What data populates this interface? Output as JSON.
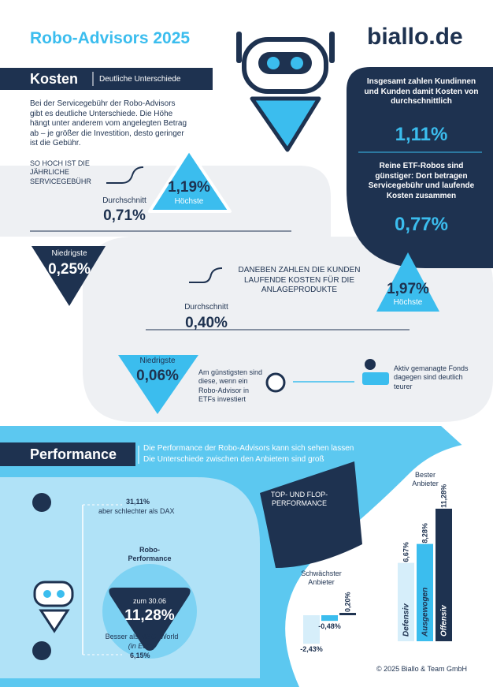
{
  "header": {
    "title": "Robo-Advisors 2025",
    "brand": "biallo.de"
  },
  "kosten": {
    "heading": "Kosten",
    "subheading": "Deutliche Unterschiede",
    "intro": "Bei der Servicegebühr der Robo-Advisors gibt es deutliche Unterschiede. Die Höhe hängt unter anderem vom angelegten Betrag ab – je größer die Investition, desto geringer ist die Gebühr.",
    "fee_label": "SO HOCH IST DIE JÄHRLICHE SERVICEGEBÜHR",
    "fee_avg_label": "Durchschnitt",
    "fee_avg": "0,71%",
    "fee_max": "1,19%",
    "fee_max_label": "Höchste",
    "fee_min_label": "Niedrigste",
    "fee_min": "0,25%",
    "total_text": "Insgesamt zahlen Kundinnen und Kunden damit Kosten von durchschnittlich",
    "total_value": "1,11%",
    "etf_text": "Reine ETF-Robos sind günstiger: Dort betragen Servicegebühr und laufende Kosten zusammen",
    "etf_value": "0,77%",
    "product_label": "DANEBEN ZAHLEN DIE KUNDEN LAUFENDE KOSTEN FÜR DIE ANLAGEPRODUKTE",
    "product_avg_label": "Durchschnitt",
    "product_avg": "0,40%",
    "product_max": "1,97%",
    "product_max_label": "Höchste",
    "product_min_label": "Niedrigste",
    "product_min": "0,06%",
    "cheapest_note": "Am günstigsten sind diese, wenn ein Robo-Advisor in ETFs investiert",
    "active_note": "Aktiv gemanagte Fonds dagegen sind deutlich teurer"
  },
  "performance": {
    "heading": "Performance",
    "subheading_1": "Die Performance der Robo-Advisors kann sich sehen lassen",
    "subheading_2": "Die Unterschiede zwischen den Anbietern sind groß",
    "dax_value": "31,11%",
    "dax_text": "aber schlechter als DAX",
    "robo_label": "Robo-Performance",
    "date": "zum 30.06",
    "robo_value": "11,28%",
    "msci_text": "Besser als MSCI World",
    "msci_note": "(in Euro)",
    "msci_value": "6,15%",
    "top_flop": "TOP- UND FLOP-PERFORMANCE",
    "colors": [
      "#d6eefa",
      "#3bbdee",
      "#1e3250"
    ],
    "worst": {
      "label": "Schwächster Anbieter",
      "values": [
        -2.43,
        -0.48,
        0.2
      ],
      "value_labels": [
        "-2,43%",
        "-0,48%",
        "0,20%"
      ]
    },
    "best": {
      "label": "Bester Anbieter",
      "categories": [
        "Defensiv",
        "Ausgewogen",
        "Offensiv"
      ],
      "values": [
        6.67,
        8.28,
        11.28
      ],
      "value_labels": [
        "6,67%",
        "8,28%",
        "11,28%"
      ]
    }
  },
  "footer": "© 2025 Biallo & Team GmbH"
}
